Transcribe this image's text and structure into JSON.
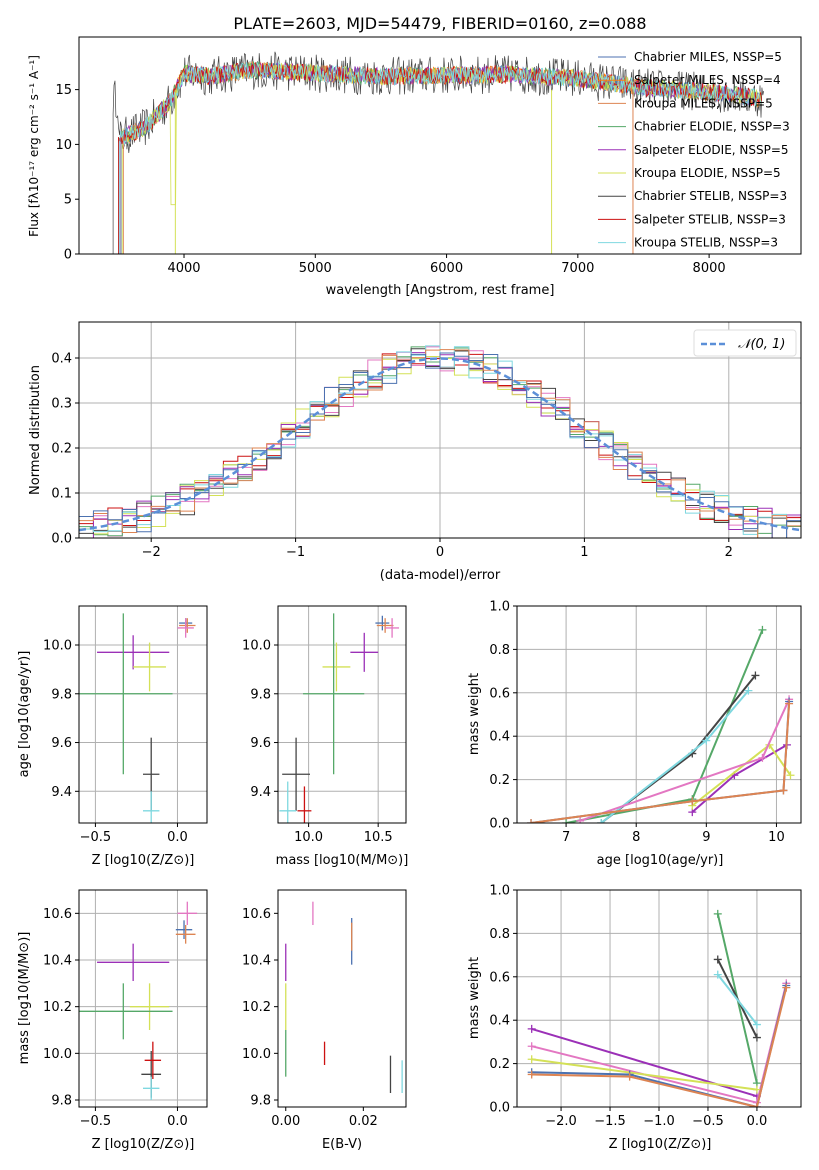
{
  "figure": {
    "title": "PLATE=2603, MJD=54479, FIBERID=0160, z=0.088"
  },
  "colors": {
    "chabrier_miles": "#4c72b0",
    "salpeter_miles": "#ff7f0e",
    "kroupa_miles": "#dd8452",
    "chabrier_elodie": "#55a868",
    "salpeter_elodie": "#9b30b7",
    "kroupa_elodie": "#d4e157",
    "chabrier_stelib": "#444444",
    "salpeter_stelib": "#cc1111",
    "kroupa_stelib": "#7fd8e0",
    "pink": "#e377c2",
    "gaussian": "#5b8fd8",
    "grid": "#b0b0b0"
  },
  "chart_data": [
    {
      "panel": "spectrum",
      "type": "line",
      "xlabel": "wavelength [Angstrom, rest frame]",
      "ylabel": "Flux [fλ10⁻¹⁷ erg cm⁻² s⁻¹ A⁻¹]",
      "xlim": [
        3200,
        8700
      ],
      "ylim": [
        0,
        19.8
      ],
      "xticks": [
        4000,
        5000,
        6000,
        7000,
        8000
      ],
      "yticks": [
        0,
        5,
        10,
        15
      ],
      "grid": false,
      "legend_position": "top-right",
      "series": [
        {
          "name": "Chabrier MILES, N_SSP=5",
          "color": "#4c72b0"
        },
        {
          "name": "Salpeter MILES, N_SSP=4",
          "color": "#ff7f0e"
        },
        {
          "name": "Kroupa MILES, N_SSP=5",
          "color": "#dd8452"
        },
        {
          "name": "Chabrier ELODIE, N_SSP=3",
          "color": "#55a868"
        },
        {
          "name": "Salpeter ELODIE, N_SSP=5",
          "color": "#9b30b7"
        },
        {
          "name": "Kroupa ELODIE, N_SSP=5",
          "color": "#d4e157"
        },
        {
          "name": "Chabrier STELIB, N_SSP=3",
          "color": "#444444"
        },
        {
          "name": "Salpeter STELIB, N_SSP=3",
          "color": "#cc1111"
        },
        {
          "name": "Kroupa STELIB, N_SSP=3",
          "color": "#7fd8e0"
        }
      ],
      "continuum_points": {
        "x": [
          3500,
          3700,
          3900,
          4000,
          4200,
          4500,
          5000,
          5500,
          6000,
          6500,
          7000,
          7500,
          8000,
          8400
        ],
        "y": [
          10.5,
          11.5,
          14.0,
          16.5,
          16.2,
          16.8,
          16.5,
          16.2,
          16.3,
          16.4,
          16.0,
          15.2,
          14.8,
          14.2
        ]
      }
    },
    {
      "panel": "residual_histogram",
      "type": "line",
      "xlabel": "(data-model)/error",
      "ylabel": "Normed distribution",
      "xlim": [
        -2.5,
        2.5
      ],
      "ylim": [
        0,
        0.48
      ],
      "xticks": [
        -2,
        -1,
        0,
        1,
        2
      ],
      "yticks": [
        0.0,
        0.1,
        0.2,
        0.3,
        0.4
      ],
      "grid": true,
      "legend_position": "top-right",
      "reference_curve": "𝒩(0, 1)",
      "bin_width": 0.1
    },
    {
      "panel": "age_vs_Z",
      "type": "scatter",
      "xlabel": "Z [log10(Z/Z⊙)]",
      "ylabel": "age  [log10(age/yr)]",
      "xlim": [
        -0.6,
        0.18
      ],
      "ylim": [
        9.27,
        10.16
      ],
      "xticks": [
        -0.5,
        0.0
      ],
      "yticks": [
        9.4,
        9.6,
        9.8,
        10.0
      ],
      "grid": true,
      "points": [
        {
          "x": -0.27,
          "xerr": 0.22,
          "y": 9.97,
          "yerr": 0.07,
          "color": "#9b30b7"
        },
        {
          "x": -0.17,
          "xerr": 0.1,
          "y": 9.91,
          "yerr": 0.1,
          "color": "#d4e157"
        },
        {
          "x": -0.33,
          "xerr": 0.3,
          "y": 9.8,
          "yerr": 0.33,
          "color": "#55a868"
        },
        {
          "x": -0.16,
          "xerr": 0.05,
          "y": 9.47,
          "yerr": 0.15,
          "color": "#444444"
        },
        {
          "x": -0.16,
          "xerr": 0.05,
          "y": 9.32,
          "yerr": 0.08,
          "color": "#7fd8e0"
        },
        {
          "x": 0.05,
          "xerr": 0.04,
          "y": 10.09,
          "yerr": 0.02,
          "color": "#4c72b0"
        },
        {
          "x": 0.06,
          "xerr": 0.05,
          "y": 10.08,
          "yerr": 0.03,
          "color": "#dd8452"
        },
        {
          "x": 0.05,
          "xerr": 0.05,
          "y": 10.07,
          "yerr": 0.04,
          "color": "#e377c2"
        }
      ]
    },
    {
      "panel": "age_vs_mass",
      "type": "scatter",
      "xlabel": "mass [log10(M/M⊙)]",
      "ylabel": "",
      "xlim": [
        9.78,
        10.7
      ],
      "ylim": [
        9.27,
        10.16
      ],
      "xticks": [
        10.0,
        10.5
      ],
      "yticks": [
        9.4,
        9.6,
        9.8,
        10.0
      ],
      "grid": true,
      "points": [
        {
          "x": 10.4,
          "xerr": 0.1,
          "y": 9.97,
          "yerr": 0.08,
          "color": "#9b30b7"
        },
        {
          "x": 10.2,
          "xerr": 0.1,
          "y": 9.91,
          "yerr": 0.1,
          "color": "#d4e157"
        },
        {
          "x": 10.18,
          "xerr": 0.22,
          "y": 9.8,
          "yerr": 0.33,
          "color": "#55a868"
        },
        {
          "x": 9.91,
          "xerr": 0.1,
          "y": 9.47,
          "yerr": 0.15,
          "color": "#444444"
        },
        {
          "x": 9.97,
          "xerr": 0.05,
          "y": 9.32,
          "yerr": 0.1,
          "color": "#cc1111"
        },
        {
          "x": 9.85,
          "xerr": 0.06,
          "y": 9.32,
          "yerr": 0.12,
          "color": "#7fd8e0"
        },
        {
          "x": 10.53,
          "xerr": 0.05,
          "y": 10.09,
          "yerr": 0.03,
          "color": "#4c72b0"
        },
        {
          "x": 10.55,
          "xerr": 0.06,
          "y": 10.08,
          "yerr": 0.03,
          "color": "#dd8452"
        },
        {
          "x": 10.6,
          "xerr": 0.05,
          "y": 10.07,
          "yerr": 0.04,
          "color": "#e377c2"
        }
      ]
    },
    {
      "panel": "weight_vs_age",
      "type": "line",
      "xlabel": "age  [log10(age/yr)]",
      "ylabel": "mass weight",
      "xlim": [
        6.3,
        10.35
      ],
      "ylim": [
        0.0,
        1.0
      ],
      "xticks": [
        7,
        8,
        9,
        10
      ],
      "yticks": [
        0.0,
        0.2,
        0.4,
        0.6,
        0.8,
        1.0
      ],
      "grid": true,
      "series": [
        {
          "color": "#55a868",
          "x": [
            7.0,
            8.8,
            9.8
          ],
          "y": [
            0.0,
            0.11,
            0.89
          ]
        },
        {
          "color": "#444444",
          "x": [
            7.5,
            8.8,
            9.7
          ],
          "y": [
            0.0,
            0.32,
            0.68
          ]
        },
        {
          "color": "#7fd8e0",
          "x": [
            7.5,
            9.0,
            9.6
          ],
          "y": [
            0.0,
            0.38,
            0.61
          ]
        },
        {
          "color": "#9b30b7",
          "x": [
            8.8,
            9.4,
            10.15
          ],
          "y": [
            0.05,
            0.22,
            0.36
          ]
        },
        {
          "color": "#d4e157",
          "x": [
            8.8,
            9.9,
            10.2
          ],
          "y": [
            0.08,
            0.36,
            0.22
          ]
        },
        {
          "color": "#e377c2",
          "x": [
            7.2,
            9.8,
            10.18
          ],
          "y": [
            0.01,
            0.3,
            0.57
          ]
        },
        {
          "color": "#4c72b0",
          "x": [
            6.5,
            8.8,
            10.1,
            10.18
          ],
          "y": [
            0.0,
            0.1,
            0.15,
            0.56
          ]
        },
        {
          "color": "#dd8452",
          "x": [
            6.5,
            8.8,
            10.1,
            10.18
          ],
          "y": [
            0.0,
            0.1,
            0.15,
            0.55
          ]
        }
      ]
    },
    {
      "panel": "mass_vs_Z",
      "type": "scatter",
      "xlabel": "Z [log10(Z/Z⊙)]",
      "ylabel": "mass [log10(M/M⊙)]",
      "xlim": [
        -0.6,
        0.18
      ],
      "ylim": [
        9.77,
        10.7
      ],
      "xticks": [
        -0.5,
        0.0
      ],
      "yticks": [
        9.8,
        10.0,
        10.2,
        10.4,
        10.6
      ],
      "grid": true,
      "points": [
        {
          "x": -0.27,
          "xerr": 0.22,
          "y": 10.39,
          "yerr": 0.08,
          "color": "#9b30b7"
        },
        {
          "x": -0.17,
          "xerr": 0.12,
          "y": 10.2,
          "yerr": 0.1,
          "color": "#d4e157"
        },
        {
          "x": -0.33,
          "xerr": 0.3,
          "y": 10.18,
          "yerr": 0.12,
          "color": "#55a868"
        },
        {
          "x": -0.16,
          "xerr": 0.06,
          "y": 9.91,
          "yerr": 0.1,
          "color": "#444444"
        },
        {
          "x": -0.15,
          "xerr": 0.05,
          "y": 9.97,
          "yerr": 0.08,
          "color": "#cc1111"
        },
        {
          "x": -0.16,
          "xerr": 0.05,
          "y": 9.85,
          "yerr": 0.05,
          "color": "#7fd8e0"
        },
        {
          "x": 0.04,
          "xerr": 0.05,
          "y": 10.53,
          "yerr": 0.04,
          "color": "#4c72b0"
        },
        {
          "x": 0.05,
          "xerr": 0.06,
          "y": 10.51,
          "yerr": 0.04,
          "color": "#dd8452"
        },
        {
          "x": 0.06,
          "xerr": 0.06,
          "y": 10.6,
          "yerr": 0.05,
          "color": "#e377c2"
        }
      ]
    },
    {
      "panel": "mass_vs_ebv",
      "type": "scatter",
      "xlabel": "E(B-V)",
      "ylabel": "",
      "xlim": [
        -0.002,
        0.031
      ],
      "ylim": [
        9.77,
        10.7
      ],
      "xticks": [
        0.0,
        0.02
      ],
      "yticks": [
        9.8,
        10.0,
        10.2,
        10.4,
        10.6
      ],
      "grid": false,
      "points": [
        {
          "x": 0.0,
          "y": 10.39,
          "yerr": 0.08,
          "color": "#9b30b7"
        },
        {
          "x": 0.0,
          "y": 10.2,
          "yerr": 0.1,
          "color": "#d4e157"
        },
        {
          "x": 0.0,
          "y": 10.0,
          "yerr": 0.1,
          "color": "#55a868"
        },
        {
          "x": 0.007,
          "y": 10.6,
          "yerr": 0.05,
          "color": "#e377c2"
        },
        {
          "x": 0.01,
          "y": 10.0,
          "yerr": 0.05,
          "color": "#cc1111"
        },
        {
          "x": 0.017,
          "y": 10.48,
          "yerr": 0.1,
          "color": "#4c72b0"
        },
        {
          "x": 0.017,
          "y": 10.5,
          "yerr": 0.06,
          "color": "#dd8452"
        },
        {
          "x": 0.027,
          "y": 9.91,
          "yerr": 0.08,
          "color": "#444444"
        },
        {
          "x": 0.03,
          "y": 9.9,
          "yerr": 0.07,
          "color": "#7fd8e0"
        }
      ]
    },
    {
      "panel": "weight_vs_Z",
      "type": "line",
      "xlabel": "Z [log10(Z/Z⊙)]",
      "ylabel": "mass weight",
      "xlim": [
        -2.45,
        0.45
      ],
      "ylim": [
        0.0,
        1.0
      ],
      "xticks": [
        -2.0,
        -1.5,
        -1.0,
        -0.5,
        0.0
      ],
      "yticks": [
        0.0,
        0.2,
        0.4,
        0.6,
        0.8,
        1.0
      ],
      "grid": true,
      "series": [
        {
          "color": "#55a868",
          "x": [
            -0.4,
            0.0
          ],
          "y": [
            0.89,
            0.11
          ]
        },
        {
          "color": "#444444",
          "x": [
            -0.4,
            0.0
          ],
          "y": [
            0.68,
            0.32
          ]
        },
        {
          "color": "#7fd8e0",
          "x": [
            -0.4,
            0.0
          ],
          "y": [
            0.61,
            0.38
          ]
        },
        {
          "color": "#9b30b7",
          "x": [
            -2.3,
            0.0
          ],
          "y": [
            0.36,
            0.05
          ]
        },
        {
          "color": "#e377c2",
          "x": [
            -2.3,
            0.0,
            0.3
          ],
          "y": [
            0.28,
            0.02,
            0.57
          ]
        },
        {
          "color": "#d4e157",
          "x": [
            -2.3,
            0.0
          ],
          "y": [
            0.22,
            0.08
          ]
        },
        {
          "color": "#4c72b0",
          "x": [
            -2.3,
            -1.3,
            0.0,
            0.3
          ],
          "y": [
            0.16,
            0.15,
            0.0,
            0.56
          ]
        },
        {
          "color": "#dd8452",
          "x": [
            -2.3,
            -1.3,
            0.0,
            0.3
          ],
          "y": [
            0.15,
            0.14,
            0.0,
            0.55
          ]
        }
      ]
    }
  ]
}
